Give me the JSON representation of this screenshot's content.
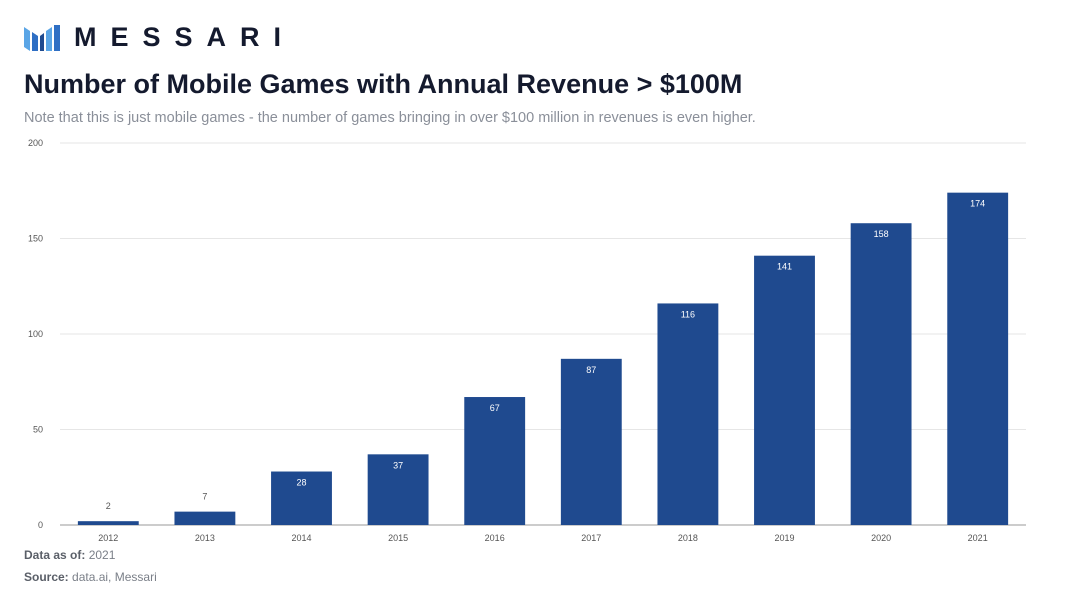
{
  "brand": {
    "name": "MESSARI",
    "logo_icon": "messari-logo-icon"
  },
  "title": "Number of Mobile Games with Annual Revenue > $100M",
  "subtitle": "Note that this is just mobile games - the number of games bringing in over $100 million in revenues is even higher.",
  "footnotes": {
    "data_as_of_label": "Data as of:",
    "data_as_of_value": "2021",
    "source_label": "Source:",
    "source_value": "data.ai, Messari"
  },
  "colors": {
    "bar": "#1f4a8f",
    "grid": "#e6e6e6",
    "axis_text": "#555555"
  },
  "chart_data": {
    "type": "bar",
    "categories": [
      "2012",
      "2013",
      "2014",
      "2015",
      "2016",
      "2017",
      "2018",
      "2019",
      "2020",
      "2021"
    ],
    "values": [
      2,
      7,
      28,
      37,
      67,
      87,
      116,
      141,
      158,
      174
    ],
    "data_labels": [
      "2",
      "7",
      "28",
      "37",
      "67",
      "87",
      "116",
      "141",
      "158",
      "174"
    ],
    "ylim": [
      0,
      200
    ],
    "yticks": [
      0,
      50,
      100,
      150,
      200
    ],
    "xlabel": "",
    "ylabel": "",
    "grid": true,
    "legend": "none"
  }
}
